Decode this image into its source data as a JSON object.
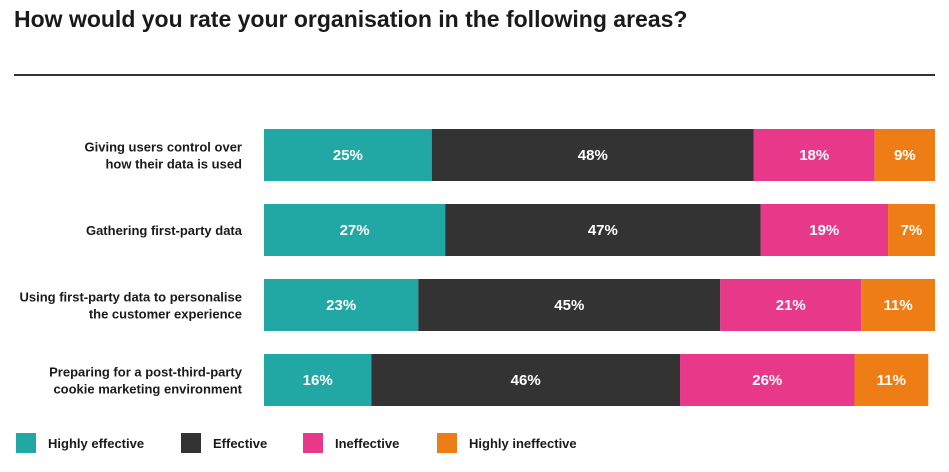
{
  "title": "How would you rate your organisation in the following areas?",
  "chart_data": {
    "type": "bar",
    "orientation": "horizontal",
    "stacked": true,
    "xlim": [
      0,
      100
    ],
    "categories": [
      [
        "Giving users control over",
        "how their data is used"
      ],
      [
        "Gathering first-party data"
      ],
      [
        "Using first-party data to personalise",
        "the customer experience"
      ],
      [
        "Preparing for a post-third-party",
        "cookie marketing environment"
      ]
    ],
    "series": [
      {
        "name": "Highly effective",
        "color": "#21a7a4",
        "values": [
          25,
          27,
          23,
          16
        ]
      },
      {
        "name": "Effective",
        "color": "#333333",
        "values": [
          48,
          47,
          45,
          46
        ]
      },
      {
        "name": "Ineffective",
        "color": "#e8388a",
        "values": [
          18,
          19,
          21,
          26
        ]
      },
      {
        "name": "Highly ineffective",
        "color": "#ef7d16",
        "values": [
          9,
          7,
          11,
          11
        ]
      }
    ],
    "value_suffix": "%",
    "legend_position": "bottom-left"
  }
}
